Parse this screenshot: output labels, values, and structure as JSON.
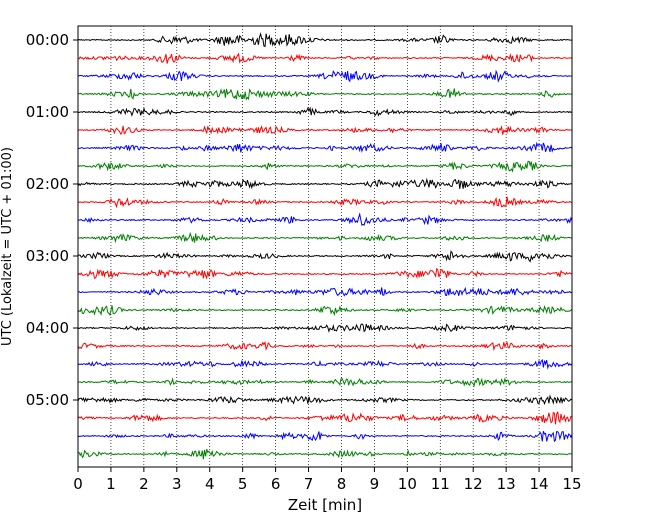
{
  "chart_data": {
    "type": "line",
    "title": "",
    "xlabel": "Zeit  [min]",
    "ylabel": "UTC (Lokalzeit = UTC + 01:00)",
    "xlim": [
      0,
      15
    ],
    "x_ticks": [
      "0",
      "1",
      "2",
      "3",
      "4",
      "5",
      "6",
      "7",
      "8",
      "9",
      "10",
      "11",
      "12",
      "13",
      "14",
      "15"
    ],
    "y_ticks": [
      "00:00",
      "01:00",
      "02:00",
      "03:00",
      "04:00",
      "05:00"
    ],
    "grid": "vertical-dotted",
    "legend": "none",
    "trace_interval_min": 15,
    "trace_count": 24,
    "trace_colors": [
      "#000000",
      "#ff0000",
      "#0000ff",
      "#008000"
    ]
  }
}
